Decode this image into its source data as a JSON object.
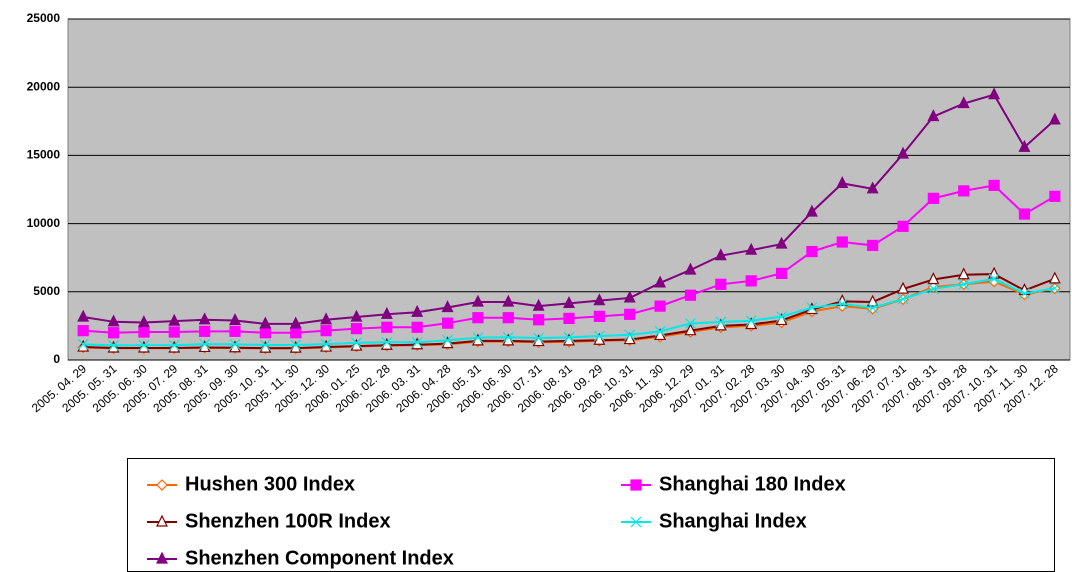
{
  "chart_data": {
    "type": "line",
    "categories": [
      "2005. 04. 29",
      "2005. 05. 31",
      "2005. 06. 30",
      "2005. 07. 29",
      "2005. 08. 31",
      "2005. 09. 30",
      "2005. 10. 31",
      "2005. 11. 30",
      "2005. 12. 30",
      "2006. 01. 25",
      "2006. 02. 28",
      "2006. 03. 31",
      "2006. 04. 28",
      "2006. 05. 31",
      "2006. 06. 30",
      "2006. 07. 31",
      "2006. 08. 31",
      "2006. 09. 29",
      "2006. 10. 31",
      "2006. 11. 30",
      "2006. 12. 29",
      "2007. 01. 31",
      "2007. 02. 28",
      "2007. 03. 30",
      "2007. 04. 30",
      "2007. 05. 31",
      "2007. 06. 29",
      "2007. 07. 31",
      "2007. 08. 31",
      "2007. 09. 28",
      "2007. 10. 31",
      "2007. 11. 30",
      "2007. 12. 28"
    ],
    "series": [
      {
        "name": "Hushen 300 Index",
        "color": "#ff6600",
        "marker": "diamond-open",
        "values": [
          920,
          860,
          860,
          860,
          900,
          880,
          850,
          850,
          920,
          990,
          1050,
          1080,
          1150,
          1350,
          1350,
          1300,
          1330,
          1400,
          1450,
          1700,
          2050,
          2400,
          2500,
          2750,
          3550,
          3950,
          3750,
          4450,
          5350,
          5550,
          5750,
          4800,
          5250
        ]
      },
      {
        "name": "Shanghai 180 Index",
        "color": "#ff00ff",
        "marker": "square",
        "values": [
          2150,
          2000,
          2050,
          2050,
          2100,
          2100,
          2000,
          2000,
          2150,
          2300,
          2400,
          2400,
          2700,
          3100,
          3100,
          2950,
          3050,
          3200,
          3350,
          3950,
          4750,
          5550,
          5800,
          6350,
          7950,
          8650,
          8400,
          9800,
          11850,
          12400,
          12800,
          10700,
          12000
        ]
      },
      {
        "name": "Shenzhen 100R Index",
        "color": "#800000",
        "marker": "triangle-open",
        "values": [
          950,
          880,
          880,
          880,
          920,
          900,
          870,
          870,
          950,
          1020,
          1080,
          1120,
          1200,
          1400,
          1400,
          1350,
          1400,
          1450,
          1500,
          1800,
          2150,
          2500,
          2600,
          2900,
          3700,
          4300,
          4250,
          5200,
          5900,
          6250,
          6300,
          5100,
          5950
        ]
      },
      {
        "name": "Shanghai Index",
        "color": "#00e8e8",
        "marker": "x",
        "values": [
          1150,
          1070,
          1080,
          1080,
          1160,
          1150,
          1100,
          1100,
          1160,
          1260,
          1300,
          1300,
          1440,
          1640,
          1670,
          1610,
          1660,
          1760,
          1840,
          2100,
          2680,
          2790,
          2880,
          3180,
          3840,
          4110,
          3820,
          4470,
          5220,
          5550,
          5950,
          4870,
          5260
        ]
      },
      {
        "name": "Shenzhen Component Index",
        "color": "#800080",
        "marker": "triangle",
        "values": [
          3150,
          2800,
          2750,
          2850,
          2950,
          2900,
          2650,
          2650,
          2950,
          3150,
          3350,
          3500,
          3850,
          4250,
          4250,
          3950,
          4150,
          4350,
          4550,
          5650,
          6600,
          7650,
          8050,
          8500,
          10850,
          12950,
          12550,
          15100,
          17850,
          18800,
          19450,
          15600,
          17600
        ]
      }
    ],
    "ylim": [
      0,
      25000
    ],
    "yticks": [
      0,
      5000,
      10000,
      15000,
      20000,
      25000
    ],
    "grid": true,
    "plot_background": "#c0c0c0"
  }
}
